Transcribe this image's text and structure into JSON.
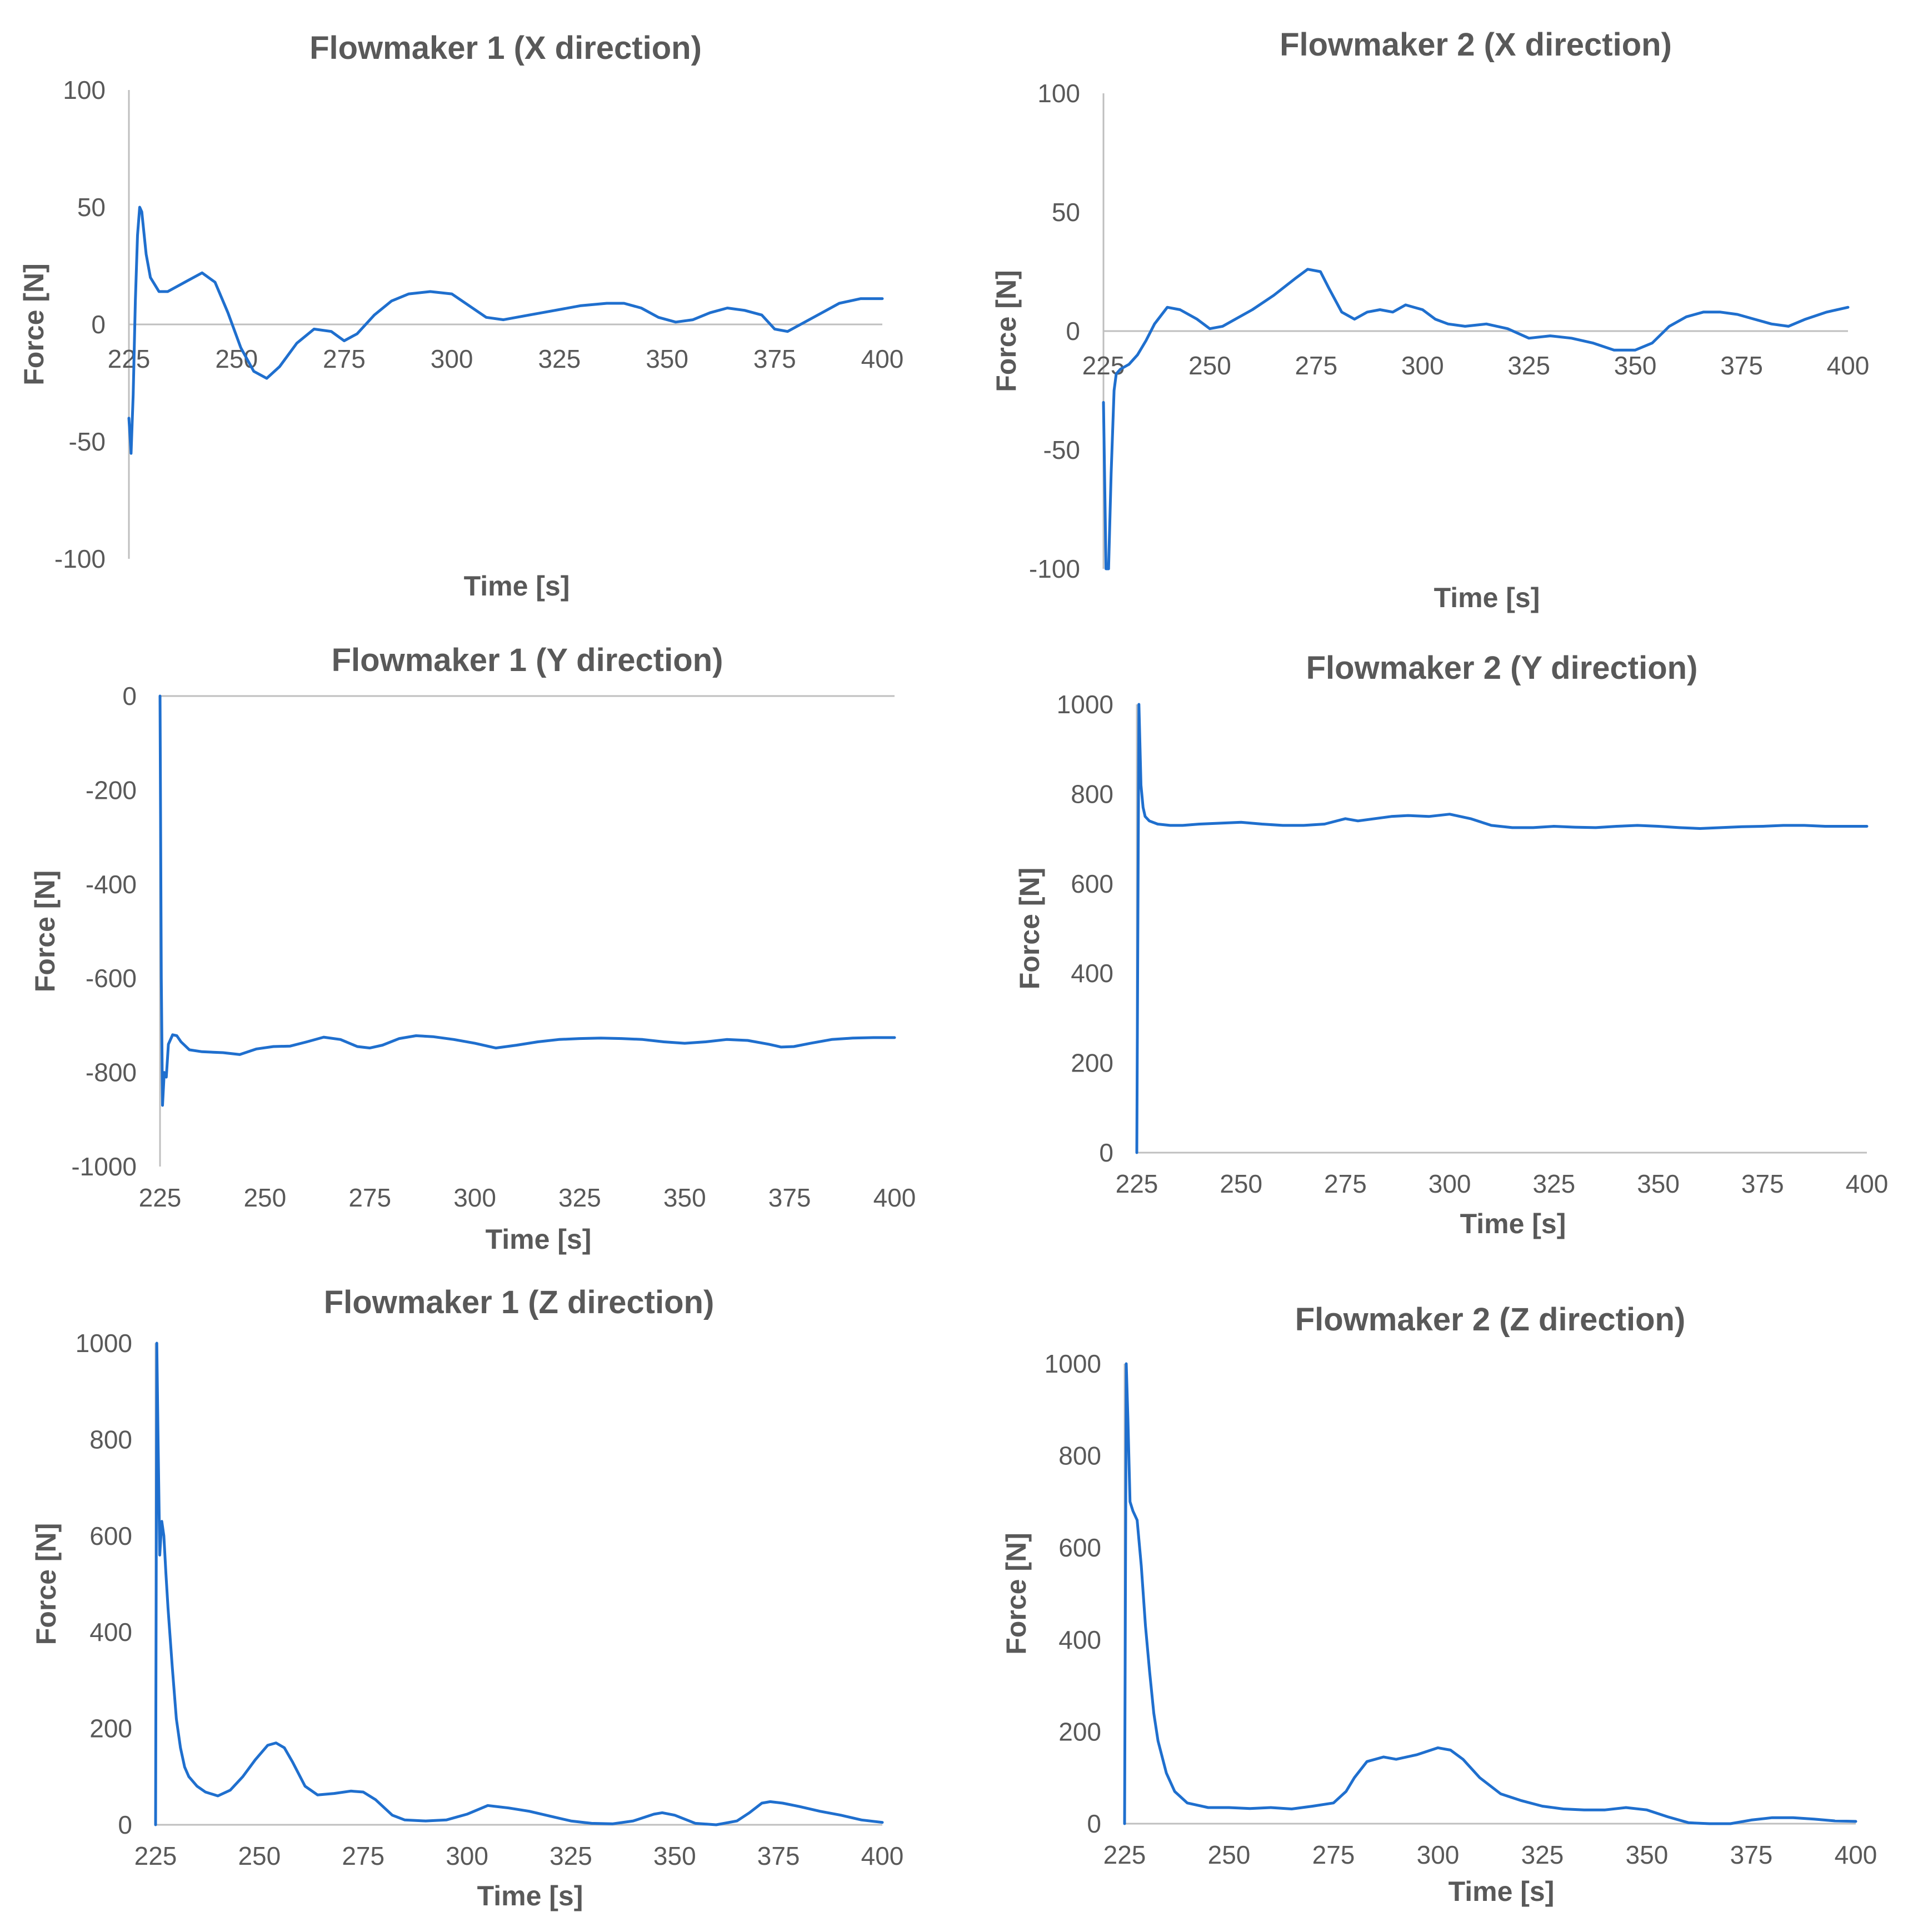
{
  "colors": {
    "series": "#1f6fce",
    "axis": "#bfbfbf",
    "text": "#595959"
  },
  "chart_data": [
    {
      "type": "line",
      "title": "Flowmaker 1 (X direction)",
      "xlabel": "Time [s]",
      "ylabel": "Force [N]",
      "xlim": [
        225,
        400
      ],
      "ylim": [
        -100,
        100
      ],
      "xticks": [
        "225",
        "250",
        "275",
        "300",
        "325",
        "350",
        "375",
        "400"
      ],
      "yticks": [
        "-100",
        "-50",
        "0",
        "50",
        "100"
      ],
      "series": [
        {
          "name": "Flowmaker 1 X",
          "x": [
            225,
            225.5,
            226,
            226.5,
            227,
            227.5,
            228,
            229,
            230,
            232,
            234,
            238,
            242,
            245,
            248,
            251,
            254,
            257,
            260,
            264,
            268,
            272,
            275,
            278,
            282,
            286,
            290,
            295,
            300,
            304,
            308,
            312,
            318,
            324,
            330,
            336,
            340,
            344,
            348,
            352,
            356,
            360,
            364,
            368,
            372,
            375,
            378,
            382,
            386,
            390,
            395,
            400
          ],
          "y": [
            -40,
            -55,
            -30,
            10,
            38,
            50,
            48,
            30,
            20,
            14,
            14,
            18,
            22,
            18,
            5,
            -10,
            -20,
            -23,
            -18,
            -8,
            -2,
            -3,
            -7,
            -4,
            4,
            10,
            13,
            14,
            13,
            8,
            3,
            2,
            4,
            6,
            8,
            9,
            9,
            7,
            3,
            1,
            2,
            5,
            7,
            6,
            4,
            -2,
            -3,
            1,
            5,
            9,
            11,
            11
          ]
        }
      ]
    },
    {
      "type": "line",
      "title": "Flowmaker 2 (X direction)",
      "xlabel": "Time [s]",
      "ylabel": "Force [N]",
      "xlim": [
        225,
        400
      ],
      "ylim": [
        -100,
        100
      ],
      "xticks": [
        "225",
        "250",
        "275",
        "300",
        "325",
        "350",
        "375",
        "400"
      ],
      "yticks": [
        "-100",
        "-50",
        "0",
        "50",
        "100"
      ],
      "series": [
        {
          "name": "Flowmaker 2 X",
          "x": [
            225,
            225.6,
            226.2,
            226.8,
            227.5,
            228,
            229,
            231,
            233,
            235,
            237,
            240,
            243,
            247,
            250,
            253,
            256,
            260,
            265,
            270,
            273,
            276,
            278,
            281,
            284,
            287,
            290,
            293,
            296,
            300,
            303,
            306,
            310,
            315,
            320,
            325,
            330,
            335,
            340,
            345,
            350,
            354,
            358,
            362,
            366,
            370,
            374,
            378,
            382,
            386,
            390,
            395,
            400
          ],
          "y": [
            -30,
            -100,
            -100,
            -60,
            -25,
            -18,
            -16,
            -14,
            -10,
            -4,
            3,
            10,
            9,
            5,
            1,
            2,
            5,
            9,
            15,
            22,
            26,
            25,
            18,
            8,
            5,
            8,
            9,
            8,
            11,
            9,
            5,
            3,
            2,
            3,
            1,
            -3,
            -2,
            -3,
            -5,
            -8,
            -8,
            -5,
            2,
            6,
            8,
            8,
            7,
            5,
            3,
            2,
            5,
            8,
            10
          ]
        }
      ]
    },
    {
      "type": "line",
      "title": "Flowmaker 1 (Y direction)",
      "xlabel": "Time [s]",
      "ylabel": "Force [N]",
      "xlim": [
        225,
        400
      ],
      "ylim": [
        -1000,
        0
      ],
      "xticks": [
        "225",
        "250",
        "275",
        "300",
        "325",
        "350",
        "375",
        "400"
      ],
      "yticks": [
        "-1000",
        "-800",
        "-600",
        "-400",
        "-200",
        "0"
      ],
      "series": [
        {
          "name": "Flowmaker 1 Y",
          "x": [
            225,
            225.3,
            225.6,
            226,
            226.5,
            227,
            228,
            229,
            230,
            232,
            235,
            240,
            244,
            248,
            252,
            256,
            260,
            264,
            268,
            272,
            275,
            278,
            282,
            286,
            290,
            295,
            300,
            305,
            310,
            315,
            320,
            325,
            330,
            335,
            340,
            345,
            350,
            355,
            360,
            365,
            370,
            373,
            376,
            380,
            385,
            390,
            395,
            400
          ],
          "y": [
            0,
            -600,
            -870,
            -800,
            -810,
            -740,
            -720,
            -722,
            -735,
            -752,
            -756,
            -758,
            -762,
            -750,
            -745,
            -744,
            -735,
            -725,
            -730,
            -745,
            -748,
            -742,
            -728,
            -722,
            -724,
            -730,
            -738,
            -748,
            -742,
            -735,
            -730,
            -728,
            -727,
            -728,
            -730,
            -735,
            -738,
            -735,
            -730,
            -732,
            -740,
            -746,
            -745,
            -738,
            -730,
            -727,
            -726,
            -726
          ]
        }
      ]
    },
    {
      "type": "line",
      "title": "Flowmaker 2 (Y direction)",
      "xlabel": "Time [s]",
      "ylabel": "Force [N]",
      "xlim": [
        225,
        400
      ],
      "ylim": [
        0,
        1000
      ],
      "xticks": [
        "225",
        "250",
        "275",
        "300",
        "325",
        "350",
        "375",
        "400"
      ],
      "yticks": [
        "0",
        "200",
        "400",
        "600",
        "800",
        "1000"
      ],
      "series": [
        {
          "name": "Flowmaker 2 Y",
          "x": [
            225,
            225.5,
            226,
            226.5,
            227,
            228,
            230,
            233,
            236,
            240,
            245,
            250,
            255,
            260,
            265,
            270,
            275,
            278,
            282,
            286,
            290,
            295,
            300,
            305,
            310,
            315,
            320,
            325,
            330,
            335,
            340,
            345,
            350,
            355,
            360,
            365,
            370,
            375,
            380,
            385,
            390,
            395,
            400
          ],
          "y": [
            0,
            1000,
            820,
            770,
            750,
            740,
            733,
            730,
            730,
            733,
            735,
            737,
            733,
            730,
            730,
            733,
            745,
            740,
            745,
            750,
            752,
            750,
            755,
            745,
            730,
            725,
            725,
            728,
            726,
            725,
            728,
            730,
            728,
            725,
            723,
            725,
            727,
            728,
            730,
            730,
            728,
            728,
            728
          ]
        }
      ]
    },
    {
      "type": "line",
      "title": "Flowmaker 1 (Z direction)",
      "xlabel": "Time [s]",
      "ylabel": "Force [N]",
      "xlim": [
        225,
        400
      ],
      "ylim": [
        0,
        1000
      ],
      "xticks": [
        "225",
        "250",
        "275",
        "300",
        "325",
        "350",
        "375",
        "400"
      ],
      "yticks": [
        "0",
        "200",
        "400",
        "600",
        "800",
        "1000"
      ],
      "series": [
        {
          "name": "Flowmaker 1 Z",
          "x": [
            225,
            225.3,
            225.6,
            226,
            226.5,
            227,
            227.5,
            228,
            229,
            230,
            231,
            232,
            233,
            235,
            237,
            240,
            243,
            246,
            249,
            252,
            254,
            256,
            258,
            261,
            264,
            268,
            272,
            275,
            278,
            282,
            285,
            290,
            295,
            300,
            305,
            310,
            315,
            320,
            325,
            330,
            335,
            340,
            345,
            347,
            350,
            355,
            360,
            365,
            368,
            371,
            373,
            376,
            380,
            385,
            390,
            395,
            400
          ],
          "y": [
            0,
            1000,
            800,
            560,
            630,
            600,
            520,
            450,
            330,
            220,
            160,
            120,
            100,
            80,
            68,
            60,
            72,
            100,
            135,
            165,
            170,
            160,
            130,
            80,
            62,
            65,
            70,
            68,
            52,
            20,
            10,
            8,
            10,
            22,
            40,
            35,
            28,
            18,
            8,
            3,
            2,
            8,
            22,
            25,
            20,
            3,
            0,
            8,
            25,
            45,
            48,
            45,
            38,
            28,
            20,
            10,
            5
          ]
        }
      ]
    },
    {
      "type": "line",
      "title": "Flowmaker 2 (Z direction)",
      "xlabel": "Time [s]",
      "ylabel": "Force [N]",
      "xlim": [
        225,
        400
      ],
      "ylim": [
        0,
        1000
      ],
      "xticks": [
        "225",
        "250",
        "275",
        "300",
        "325",
        "350",
        "375",
        "400"
      ],
      "yticks": [
        "0",
        "200",
        "400",
        "600",
        "800",
        "1000"
      ],
      "series": [
        {
          "name": "Flowmaker 2 Z",
          "x": [
            225,
            225.4,
            225.8,
            226.3,
            227,
            228,
            229,
            230,
            231,
            232,
            233,
            235,
            237,
            240,
            245,
            250,
            255,
            260,
            265,
            270,
            275,
            278,
            280,
            283,
            287,
            290,
            295,
            300,
            303,
            306,
            310,
            315,
            320,
            325,
            330,
            335,
            340,
            345,
            350,
            355,
            360,
            365,
            370,
            375,
            380,
            385,
            390,
            395,
            400
          ],
          "y": [
            0,
            1000,
            880,
            700,
            680,
            660,
            560,
            430,
            330,
            240,
            180,
            110,
            70,
            45,
            35,
            35,
            33,
            35,
            32,
            38,
            45,
            70,
            100,
            135,
            145,
            140,
            150,
            165,
            160,
            140,
            100,
            65,
            50,
            38,
            32,
            30,
            30,
            35,
            30,
            15,
            2,
            -5,
            0,
            8,
            13,
            13,
            10,
            6,
            5
          ]
        }
      ]
    }
  ]
}
